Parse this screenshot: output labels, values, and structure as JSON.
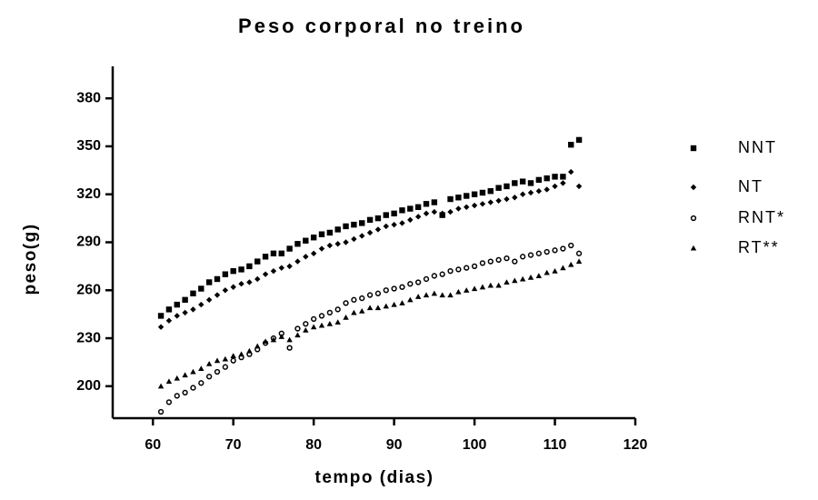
{
  "chart_data": {
    "type": "scatter",
    "title": "Peso corporal no treino",
    "x_label": "tempo (dias)",
    "y_label": "peso(g)",
    "xlim": [
      55,
      120
    ],
    "ylim": [
      180,
      400
    ],
    "xticks": [
      60,
      70,
      80,
      90,
      100,
      110,
      120
    ],
    "yticks": [
      200,
      230,
      260,
      290,
      320,
      350,
      380
    ],
    "legend": "right",
    "x": [
      61,
      62,
      63,
      64,
      65,
      66,
      67,
      68,
      69,
      70,
      71,
      72,
      73,
      74,
      75,
      76,
      77,
      78,
      79,
      80,
      81,
      82,
      83,
      84,
      85,
      86,
      87,
      88,
      89,
      90,
      91,
      92,
      93,
      94,
      95,
      96,
      97,
      98,
      99,
      100,
      101,
      102,
      103,
      104,
      105,
      106,
      107,
      108,
      109,
      110,
      111,
      112,
      113
    ],
    "series": [
      {
        "name": "NNT",
        "color": "#000000",
        "marker": "square",
        "values": [
          244,
          248,
          251,
          254,
          258,
          261,
          265,
          267,
          270,
          272,
          273,
          275,
          278,
          281,
          283,
          283,
          286,
          289,
          291,
          293,
          295,
          296,
          298,
          300,
          301,
          302,
          304,
          305,
          307,
          308,
          310,
          311,
          312,
          314,
          315,
          307,
          317,
          318,
          319,
          320,
          321,
          322,
          324,
          325,
          327,
          328,
          327,
          329,
          330,
          331,
          331,
          351,
          354
        ]
      },
      {
        "name": "NT",
        "color": "#000000",
        "marker": "diamond",
        "values": [
          237,
          241,
          244,
          246,
          248,
          251,
          254,
          257,
          260,
          262,
          264,
          265,
          267,
          270,
          272,
          274,
          275,
          278,
          281,
          283,
          286,
          288,
          289,
          290,
          292,
          294,
          296,
          298,
          300,
          301,
          302,
          304,
          306,
          308,
          309,
          308,
          309,
          311,
          312,
          313,
          314,
          315,
          316,
          317,
          318,
          320,
          321,
          322,
          323,
          325,
          327,
          334,
          325
        ]
      },
      {
        "name": "RNT*",
        "color": "#000000",
        "marker": "circle",
        "values": [
          184,
          190,
          194,
          196,
          199,
          202,
          206,
          209,
          212,
          216,
          218,
          220,
          223,
          227,
          230,
          233,
          224,
          236,
          239,
          242,
          244,
          246,
          248,
          252,
          254,
          255,
          257,
          258,
          260,
          261,
          262,
          264,
          265,
          267,
          269,
          270,
          272,
          273,
          274,
          275,
          277,
          278,
          279,
          280,
          278,
          281,
          282,
          283,
          284,
          285,
          286,
          288,
          283
        ]
      },
      {
        "name": "RT**",
        "color": "#000000",
        "marker": "triangle",
        "values": [
          200,
          203,
          205,
          207,
          209,
          211,
          214,
          216,
          217,
          219,
          220,
          222,
          225,
          228,
          229,
          231,
          229,
          232,
          235,
          237,
          238,
          239,
          240,
          243,
          246,
          247,
          249,
          249,
          250,
          251,
          252,
          254,
          256,
          257,
          258,
          257,
          257,
          259,
          260,
          261,
          262,
          263,
          263,
          265,
          266,
          267,
          268,
          269,
          271,
          272,
          274,
          276,
          278
        ]
      }
    ]
  }
}
